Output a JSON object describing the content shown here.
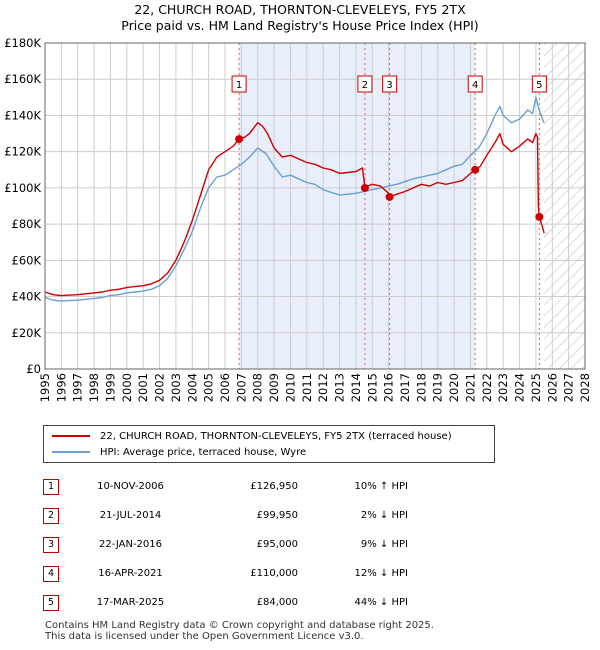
{
  "chart_data": {
    "type": "line",
    "title": "22, CHURCH ROAD, THORNTON-CLEVELEYS, FY5 2TX",
    "subtitle": "Price paid vs. HM Land Registry's House Price Index (HPI)",
    "xlabel": "",
    "ylabel": "",
    "xlim": [
      1995,
      2028
    ],
    "ylim": [
      0,
      180000
    ],
    "x_ticks": [
      "1995",
      "1996",
      "1997",
      "1998",
      "1999",
      "2000",
      "2001",
      "2002",
      "2003",
      "2004",
      "2005",
      "2006",
      "2007",
      "2008",
      "2009",
      "2010",
      "2011",
      "2012",
      "2013",
      "2014",
      "2015",
      "2016",
      "2017",
      "2018",
      "2019",
      "2020",
      "2021",
      "2022",
      "2023",
      "2024",
      "2025",
      "2026",
      "2027",
      "2028"
    ],
    "y_ticks": [
      {
        "value": 0,
        "label": "£0"
      },
      {
        "value": 20000,
        "label": "£20K"
      },
      {
        "value": 40000,
        "label": "£40K"
      },
      {
        "value": 60000,
        "label": "£60K"
      },
      {
        "value": 80000,
        "label": "£80K"
      },
      {
        "value": 100000,
        "label": "£100K"
      },
      {
        "value": 120000,
        "label": "£120K"
      },
      {
        "value": 140000,
        "label": "£140K"
      },
      {
        "value": 160000,
        "label": "£160K"
      },
      {
        "value": 180000,
        "label": "£180K"
      }
    ],
    "grid": true,
    "shaded_period": [
      2006.86,
      2021.29
    ],
    "forecast_from": 2025.5,
    "series": [
      {
        "name": "22, CHURCH ROAD, THORNTON-CLEVELEYS, FY5 2TX (terraced house)",
        "color": "#cc0000",
        "points": [
          [
            1995.0,
            42500
          ],
          [
            1995.5,
            41000
          ],
          [
            1996.0,
            40500
          ],
          [
            1996.5,
            40800
          ],
          [
            1997.0,
            41000
          ],
          [
            1997.5,
            41500
          ],
          [
            1998.0,
            42000
          ],
          [
            1998.5,
            42500
          ],
          [
            1999.0,
            43500
          ],
          [
            1999.5,
            44000
          ],
          [
            2000.0,
            45000
          ],
          [
            2000.5,
            45500
          ],
          [
            2001.0,
            46000
          ],
          [
            2001.5,
            47000
          ],
          [
            2002.0,
            49000
          ],
          [
            2002.5,
            53000
          ],
          [
            2003.0,
            60000
          ],
          [
            2003.5,
            70000
          ],
          [
            2004.0,
            82000
          ],
          [
            2004.5,
            96000
          ],
          [
            2005.0,
            110000
          ],
          [
            2005.5,
            117000
          ],
          [
            2006.0,
            120000
          ],
          [
            2006.5,
            123000
          ],
          [
            2006.86,
            126950
          ],
          [
            2007.2,
            128000
          ],
          [
            2007.5,
            130000
          ],
          [
            2008.0,
            136000
          ],
          [
            2008.3,
            134000
          ],
          [
            2008.6,
            130000
          ],
          [
            2009.0,
            122000
          ],
          [
            2009.5,
            117000
          ],
          [
            2010.0,
            118000
          ],
          [
            2010.5,
            116000
          ],
          [
            2011.0,
            114000
          ],
          [
            2011.5,
            113000
          ],
          [
            2012.0,
            111000
          ],
          [
            2012.5,
            110000
          ],
          [
            2013.0,
            108000
          ],
          [
            2013.5,
            108500
          ],
          [
            2014.0,
            109000
          ],
          [
            2014.4,
            111000
          ],
          [
            2014.55,
            99950
          ],
          [
            2014.7,
            101000
          ],
          [
            2015.0,
            102000
          ],
          [
            2015.5,
            101000
          ],
          [
            2016.0,
            97000
          ],
          [
            2016.06,
            95000
          ],
          [
            2016.5,
            96500
          ],
          [
            2017.0,
            98000
          ],
          [
            2017.5,
            100000
          ],
          [
            2018.0,
            102000
          ],
          [
            2018.5,
            101000
          ],
          [
            2019.0,
            103000
          ],
          [
            2019.5,
            102000
          ],
          [
            2020.0,
            103000
          ],
          [
            2020.5,
            104000
          ],
          [
            2021.0,
            108000
          ],
          [
            2021.29,
            110000
          ],
          [
            2021.6,
            112000
          ],
          [
            2022.0,
            118000
          ],
          [
            2022.5,
            125000
          ],
          [
            2022.8,
            130000
          ],
          [
            2023.0,
            124000
          ],
          [
            2023.5,
            120000
          ],
          [
            2024.0,
            123000
          ],
          [
            2024.5,
            127000
          ],
          [
            2024.8,
            125000
          ],
          [
            2025.0,
            130000
          ],
          [
            2025.1,
            128000
          ],
          [
            2025.15,
            90000
          ],
          [
            2025.21,
            84000
          ],
          [
            2025.35,
            80000
          ],
          [
            2025.5,
            75000
          ]
        ]
      },
      {
        "name": "HPI: Average price, terraced house, Wyre",
        "color": "#6a9fd4",
        "points": [
          [
            1995.0,
            39500
          ],
          [
            1995.5,
            38000
          ],
          [
            1996.0,
            37500
          ],
          [
            1996.5,
            37800
          ],
          [
            1997.0,
            38000
          ],
          [
            1997.5,
            38500
          ],
          [
            1998.0,
            39000
          ],
          [
            1998.5,
            39500
          ],
          [
            1999.0,
            40500
          ],
          [
            1999.5,
            41000
          ],
          [
            2000.0,
            42000
          ],
          [
            2000.5,
            42500
          ],
          [
            2001.0,
            43000
          ],
          [
            2001.5,
            44000
          ],
          [
            2002.0,
            46000
          ],
          [
            2002.5,
            50000
          ],
          [
            2003.0,
            57000
          ],
          [
            2003.5,
            66000
          ],
          [
            2004.0,
            76000
          ],
          [
            2004.5,
            89000
          ],
          [
            2005.0,
            100000
          ],
          [
            2005.5,
            106000
          ],
          [
            2006.0,
            107000
          ],
          [
            2006.5,
            110000
          ],
          [
            2007.0,
            113000
          ],
          [
            2007.5,
            117000
          ],
          [
            2008.0,
            122000
          ],
          [
            2008.5,
            119000
          ],
          [
            2009.0,
            112000
          ],
          [
            2009.5,
            106000
          ],
          [
            2010.0,
            107000
          ],
          [
            2010.5,
            105000
          ],
          [
            2011.0,
            103000
          ],
          [
            2011.5,
            102000
          ],
          [
            2012.0,
            99000
          ],
          [
            2012.5,
            97500
          ],
          [
            2013.0,
            96000
          ],
          [
            2013.5,
            96500
          ],
          [
            2014.0,
            97000
          ],
          [
            2014.5,
            98000
          ],
          [
            2015.0,
            99000
          ],
          [
            2015.5,
            100000
          ],
          [
            2016.0,
            101000
          ],
          [
            2016.5,
            102000
          ],
          [
            2017.0,
            103500
          ],
          [
            2017.5,
            105000
          ],
          [
            2018.0,
            106000
          ],
          [
            2018.5,
            107000
          ],
          [
            2019.0,
            108000
          ],
          [
            2019.5,
            110000
          ],
          [
            2020.0,
            112000
          ],
          [
            2020.5,
            113000
          ],
          [
            2021.0,
            118000
          ],
          [
            2021.5,
            122000
          ],
          [
            2022.0,
            130000
          ],
          [
            2022.5,
            140000
          ],
          [
            2022.8,
            145000
          ],
          [
            2023.0,
            140000
          ],
          [
            2023.5,
            136000
          ],
          [
            2024.0,
            138000
          ],
          [
            2024.5,
            143000
          ],
          [
            2024.8,
            141000
          ],
          [
            2025.0,
            150000
          ],
          [
            2025.2,
            143000
          ],
          [
            2025.4,
            138000
          ],
          [
            2025.5,
            136000
          ]
        ]
      }
    ],
    "markers": [
      {
        "label": "1",
        "x": 2006.86,
        "y": 126950
      },
      {
        "label": "2",
        "x": 2014.55,
        "y": 99950
      },
      {
        "label": "3",
        "x": 2016.06,
        "y": 95000
      },
      {
        "label": "4",
        "x": 2021.29,
        "y": 110000
      },
      {
        "label": "5",
        "x": 2025.21,
        "y": 84000
      }
    ]
  },
  "legend": {
    "property_label": "22, CHURCH ROAD, THORNTON-CLEVELEYS, FY5 2TX (terraced house)",
    "hpi_label": "HPI: Average price, terraced house, Wyre"
  },
  "sales": [
    {
      "num": "1",
      "date": "10-NOV-2006",
      "price": "£126,950",
      "hpi": "10% ↑ HPI"
    },
    {
      "num": "2",
      "date": "21-JUL-2014",
      "price": "£99,950",
      "hpi": "2% ↓ HPI"
    },
    {
      "num": "3",
      "date": "22-JAN-2016",
      "price": "£95,000",
      "hpi": "9% ↓ HPI"
    },
    {
      "num": "4",
      "date": "16-APR-2021",
      "price": "£110,000",
      "hpi": "12% ↓ HPI"
    },
    {
      "num": "5",
      "date": "17-MAR-2025",
      "price": "£84,000",
      "hpi": "44% ↓ HPI"
    }
  ],
  "footer": {
    "line1": "Contains HM Land Registry data © Crown copyright and database right 2025.",
    "line2": "This data is licensed under the Open Government Licence v3.0."
  },
  "colors": {
    "property": "#cc0000",
    "hpi": "#6a9fd4",
    "shade": "#e8eefa",
    "grid": "#cccccc"
  }
}
